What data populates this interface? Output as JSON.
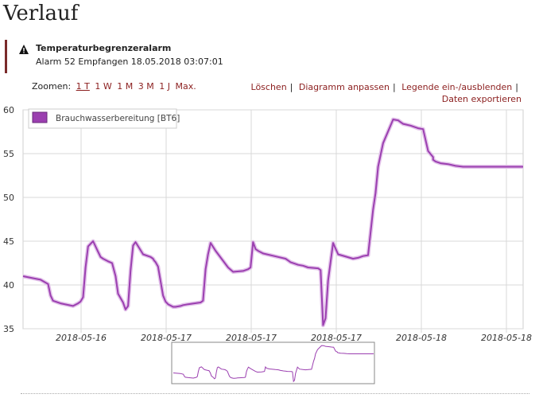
{
  "page": {
    "title": "Verlauf"
  },
  "alarm": {
    "title": "Temperaturbegrenzeralarm",
    "subtitle": "Alarm 52 Empfangen 18.05.2018 03:07:01",
    "icon": "warning-icon"
  },
  "zoom": {
    "label": "Zoomen:",
    "options": [
      "1 T",
      "1 W",
      "1 M",
      "3 M",
      "1 J",
      "Max."
    ],
    "active": "1 T"
  },
  "actions": {
    "delete": "Löschen",
    "adjust": "Diagramm anpassen",
    "legend": "Legende ein-/ausblenden",
    "export": "Daten exportieren"
  },
  "colors": {
    "series": "#9b3fb0",
    "link": "#8b1e1e",
    "grid": "#d8d8d8"
  },
  "chart_data": {
    "type": "line",
    "ylim": [
      35,
      60
    ],
    "yticks": [
      35,
      40,
      45,
      50,
      55,
      60
    ],
    "xtick_labels": [
      "2018-05-16",
      "2018-05-17",
      "2018-05-17",
      "2018-05-17",
      "2018-05-18",
      "2018-05-18"
    ],
    "series": [
      {
        "name": "Brauchwasserbereitung [BT6]",
        "color": "#9b3fb0",
        "x": [
          0,
          0.035,
          0.05,
          0.055,
          0.06,
          0.075,
          0.1,
          0.11,
          0.115,
          0.12,
          0.125,
          0.13,
          0.14,
          0.15,
          0.155,
          0.16,
          0.17,
          0.178,
          0.185,
          0.19,
          0.2,
          0.205,
          0.21,
          0.215,
          0.22,
          0.225,
          0.24,
          0.255,
          0.26,
          0.262,
          0.265,
          0.27,
          0.28,
          0.285,
          0.29,
          0.3,
          0.305,
          0.315,
          0.32,
          0.33,
          0.355,
          0.36,
          0.365,
          0.37,
          0.375,
          0.385,
          0.41,
          0.42,
          0.44,
          0.45,
          0.455,
          0.46,
          0.465,
          0.47,
          0.48,
          0.51,
          0.525,
          0.53,
          0.535,
          0.545,
          0.55,
          0.56,
          0.57,
          0.59,
          0.595,
          0.6,
          0.605,
          0.61,
          0.62,
          0.63,
          0.66,
          0.67,
          0.68,
          0.69,
          0.7,
          0.705,
          0.71,
          0.72,
          0.74,
          0.75,
          0.755,
          0.76,
          0.775,
          0.79,
          0.8,
          0.81,
          0.82,
          0.82,
          0.825,
          0.835,
          0.85,
          0.865,
          0.88,
          0.9,
          0.93,
          0.96,
          0.98,
          0.985,
          0.99,
          1.0
        ],
        "y": [
          41.0,
          40.6,
          40.1,
          38.8,
          38.2,
          37.9,
          37.6,
          37.9,
          38.1,
          38.6,
          42.0,
          44.4,
          45.0,
          43.8,
          43.2,
          43.0,
          42.7,
          42.5,
          41.0,
          39.0,
          38.0,
          37.2,
          37.6,
          41.6,
          44.5,
          44.9,
          43.5,
          43.2,
          43.0,
          42.8,
          42.6,
          42.1,
          38.8,
          38.1,
          37.8,
          37.5,
          37.5,
          37.6,
          37.7,
          37.8,
          38.0,
          38.2,
          41.8,
          43.5,
          44.8,
          43.9,
          42.0,
          41.5,
          41.6,
          41.8,
          42.0,
          44.9,
          44.1,
          43.9,
          43.6,
          43.2,
          43.0,
          42.8,
          42.6,
          42.4,
          42.3,
          42.2,
          42.0,
          41.9,
          41.7,
          35.4,
          36.2,
          40.5,
          44.8,
          43.5,
          43.0,
          43.1,
          43.3,
          43.4,
          48.6,
          50.5,
          53.5,
          56.2,
          58.9,
          58.8,
          58.6,
          58.4,
          58.2,
          57.9,
          57.8,
          55.3,
          54.6,
          54.3,
          54.1,
          53.9,
          53.8,
          53.6,
          53.5,
          53.5,
          53.5,
          53.5,
          53.5,
          53.5,
          53.5,
          53.5
        ]
      }
    ]
  }
}
